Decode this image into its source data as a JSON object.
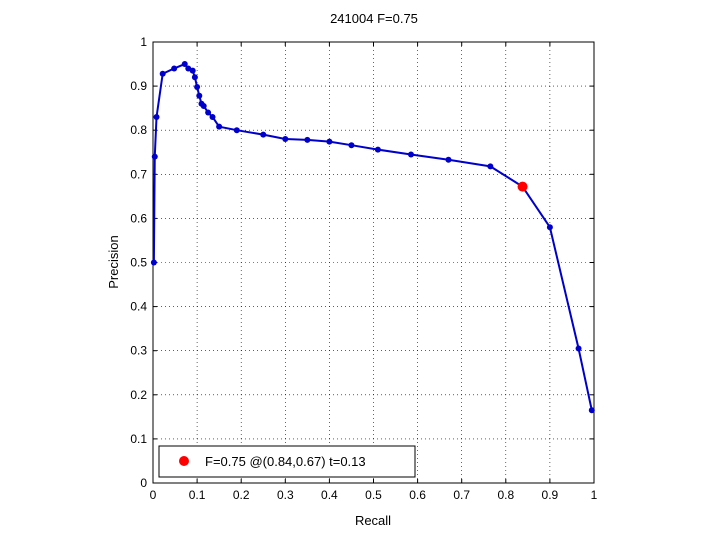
{
  "chart_data": {
    "type": "line",
    "title": "241004 F=0.75",
    "xlabel": "Recall",
    "ylabel": "Precision",
    "xlim": [
      0,
      1
    ],
    "ylim": [
      0,
      1
    ],
    "xticks": [
      "0",
      "0.1",
      "0.2",
      "0.3",
      "0.4",
      "0.5",
      "0.6",
      "0.7",
      "0.8",
      "0.9",
      "1"
    ],
    "yticks": [
      "0",
      "0.1",
      "0.2",
      "0.3",
      "0.4",
      "0.5",
      "0.6",
      "0.7",
      "0.8",
      "0.9",
      "1"
    ],
    "grid": true,
    "series": [
      {
        "color": "#0000cc",
        "points": [
          [
            0.995,
            0.165
          ],
          [
            0.965,
            0.305
          ],
          [
            0.9,
            0.58
          ],
          [
            0.838,
            0.672
          ],
          [
            0.765,
            0.718
          ],
          [
            0.67,
            0.733
          ],
          [
            0.585,
            0.745
          ],
          [
            0.51,
            0.756
          ],
          [
            0.45,
            0.766
          ],
          [
            0.4,
            0.774
          ],
          [
            0.35,
            0.778
          ],
          [
            0.3,
            0.78
          ],
          [
            0.25,
            0.79
          ],
          [
            0.19,
            0.8
          ],
          [
            0.15,
            0.808
          ],
          [
            0.135,
            0.83
          ],
          [
            0.125,
            0.84
          ],
          [
            0.115,
            0.855
          ],
          [
            0.11,
            0.86
          ],
          [
            0.105,
            0.878
          ],
          [
            0.1,
            0.898
          ],
          [
            0.095,
            0.92
          ],
          [
            0.09,
            0.935
          ],
          [
            0.08,
            0.94
          ],
          [
            0.072,
            0.95
          ],
          [
            0.048,
            0.94
          ],
          [
            0.022,
            0.928
          ],
          [
            0.008,
            0.83
          ],
          [
            0.004,
            0.74
          ],
          [
            0.002,
            0.5
          ]
        ]
      }
    ],
    "highlight": {
      "x": 0.838,
      "y": 0.672,
      "color": "#ff0000"
    },
    "legend": {
      "position": "bottom-left",
      "entries": [
        {
          "label": "F=0.75 @(0.84,0.67) t=0.13",
          "color": "#ff0000"
        }
      ]
    }
  }
}
